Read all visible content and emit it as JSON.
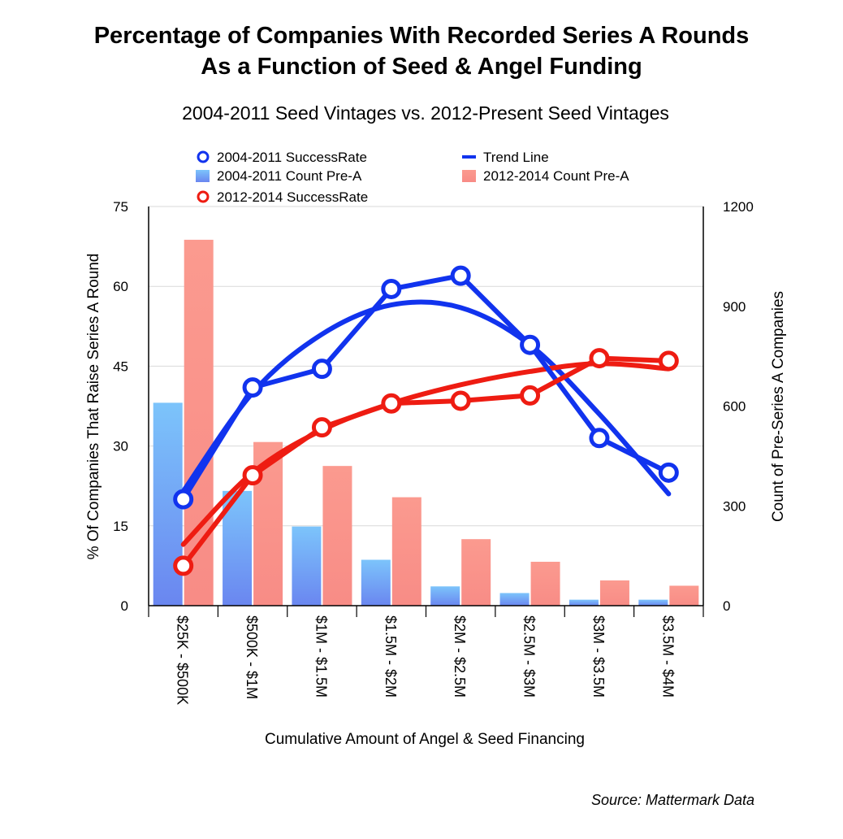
{
  "title_line1": "Percentage of Companies With Recorded Series A Rounds",
  "title_line2": "As a Function of Seed & Angel Funding",
  "subtitle": "2004-2011 Seed Vintages vs. 2012-Present Seed Vintages",
  "source": "Source: Mattermark Data",
  "chart_data": {
    "type": "bar",
    "categories": [
      "$25K - $500K",
      "$500K - $1M",
      "$1M - $1.5M",
      "$1.5M - $2M",
      "$2M - $2.5M",
      "$2.5M - $3M",
      "$3M - $3.5M",
      "$3.5M - $4M"
    ],
    "xlabel": "Cumulative Amount of Angel & Seed Financing",
    "ylabel_left": "% Of Companies That Raise Series A Round",
    "ylabel_right": "Count of Pre-Series A Companies",
    "ylim_left": [
      0,
      75
    ],
    "ylim_right": [
      0,
      1200
    ],
    "yticks_left": [
      "0",
      "15",
      "30",
      "45",
      "60",
      "75"
    ],
    "yticks_right": [
      "0",
      "300",
      "600",
      "900",
      "1200"
    ],
    "grid": true,
    "legend_position": "top",
    "series": [
      {
        "name": "2004-2011 Count Pre-A",
        "type": "bar",
        "axis": "right",
        "color": "#6f9bf5",
        "values": [
          610,
          345,
          238,
          138,
          58,
          38,
          18,
          18
        ]
      },
      {
        "name": "2012-2014 Count Pre-A",
        "type": "bar",
        "axis": "right",
        "color": "#fa8c84",
        "values": [
          1100,
          492,
          420,
          326,
          200,
          132,
          76,
          60
        ]
      },
      {
        "name": "2004-2011 SuccessRate",
        "type": "line",
        "axis": "left",
        "color": "#1133ee",
        "values": [
          20,
          41,
          44.5,
          59.5,
          62,
          49,
          31.5,
          25
        ]
      },
      {
        "name": "2012-2014 SuccessRate",
        "type": "line",
        "axis": "left",
        "color": "#ee1c12",
        "values": [
          7.5,
          24.5,
          33.5,
          38,
          38.5,
          39.5,
          46.5,
          46
        ]
      },
      {
        "name": "Trend Line",
        "type": "trend",
        "axis": "left",
        "color": "#1133ee",
        "values": [
          21.5,
          40,
          51,
          56.5,
          56,
          49,
          36,
          21
        ]
      },
      {
        "name": "",
        "type": "trend",
        "axis": "left",
        "color": "#ee1c12",
        "values": [
          11.5,
          25,
          33,
          38,
          41.5,
          44,
          45.5,
          44.5
        ]
      }
    ],
    "legend": [
      {
        "label": "2004-2011 SuccessRate",
        "kind": "marker",
        "color": "#1133ee"
      },
      {
        "label": "Trend Line",
        "kind": "line",
        "color": "#1133ee"
      },
      {
        "label": "2004-2011 Count Pre-A",
        "kind": "bar",
        "color": "#6f9bf5"
      },
      {
        "label": "2012-2014 Count Pre-A",
        "kind": "bar",
        "color": "#fa8c84"
      },
      {
        "label": "2012-2014 SuccessRate",
        "kind": "marker",
        "color": "#ee1c12"
      }
    ]
  }
}
